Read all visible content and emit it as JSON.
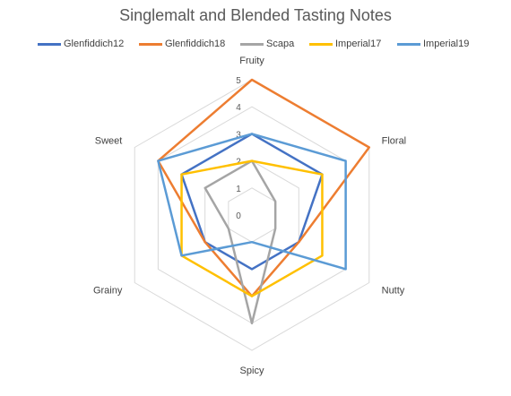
{
  "chart_data": {
    "type": "radar",
    "title": "Singlemalt and Blended Tasting Notes",
    "categories": [
      "Fruity",
      "Floral",
      "Nutty",
      "Spicy",
      "Grainy",
      "Sweet"
    ],
    "rlim": [
      0,
      5
    ],
    "ticks": [
      "0",
      "1",
      "2",
      "3",
      "4",
      "5"
    ],
    "grid": true,
    "legend_position": "top",
    "series": [
      {
        "name": "Glenfiddich12",
        "color": "#4472C4",
        "values": [
          3,
          3,
          2,
          2,
          2,
          3
        ]
      },
      {
        "name": "Glenfiddich18",
        "color": "#ED7D31",
        "values": [
          5,
          5,
          2,
          3,
          2,
          4
        ]
      },
      {
        "name": "Scapa",
        "color": "#A5A5A5",
        "values": [
          2,
          1,
          1,
          4,
          1,
          2
        ]
      },
      {
        "name": "Imperial17",
        "color": "#FFC000",
        "values": [
          2,
          3,
          3,
          3,
          3,
          3
        ]
      },
      {
        "name": "Imperial19",
        "color": "#5B9BD5",
        "values": [
          3,
          4,
          4,
          1,
          3,
          4
        ]
      }
    ]
  }
}
